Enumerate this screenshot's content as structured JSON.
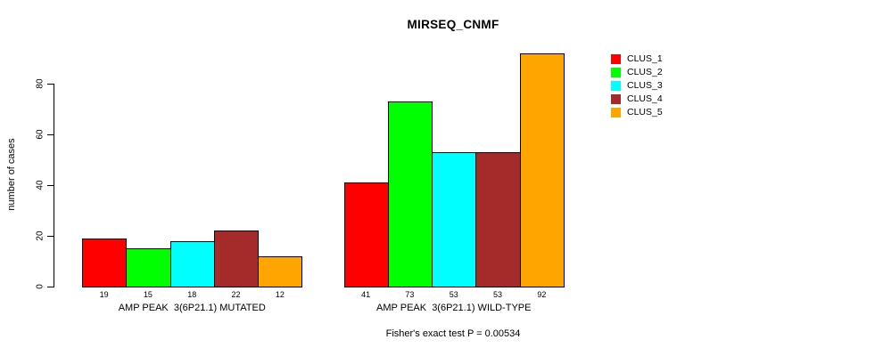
{
  "chart_data": {
    "type": "bar",
    "title": "MIRSEQ_CNMF",
    "ylabel": "number of cases",
    "xlabel": "",
    "ylim": [
      0,
      92
    ],
    "yticks": [
      0,
      20,
      40,
      60,
      80
    ],
    "grid": false,
    "series_labels": [
      "CLUS_1",
      "CLUS_2",
      "CLUS_3",
      "CLUS_4",
      "CLUS_5"
    ],
    "series_colors": [
      "#ff0000",
      "#00ff00",
      "#00ffff",
      "#a52a2a",
      "#ffa500"
    ],
    "groups": [
      {
        "label": "AMP PEAK  3(6P21.1) MUTATED",
        "values": [
          19,
          15,
          18,
          22,
          12
        ]
      },
      {
        "label": "AMP PEAK  3(6P21.1) WILD-TYPE",
        "values": [
          41,
          73,
          53,
          53,
          92
        ]
      }
    ],
    "legend": {
      "position": "right",
      "entries": [
        {
          "label": "CLUS_1",
          "color": "#ff0000"
        },
        {
          "label": "CLUS_2",
          "color": "#00ff00"
        },
        {
          "label": "CLUS_3",
          "color": "#00ffff"
        },
        {
          "label": "CLUS_4",
          "color": "#a52a2a"
        },
        {
          "label": "CLUS_5",
          "color": "#ffa500"
        }
      ]
    },
    "annotation": "Fisher's exact test P = 0.00534"
  }
}
